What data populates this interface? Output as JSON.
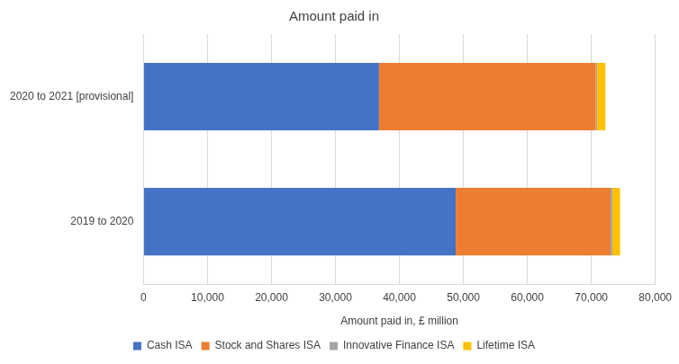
{
  "chart_data": {
    "type": "bar",
    "title": "Amount paid in",
    "orientation": "horizontal",
    "stacked": true,
    "grid": true,
    "legend": "bottom",
    "x_label": "Amount paid in, £ million",
    "categories": [
      "2020 to 2021 [provisional]",
      "2019 to 2020"
    ],
    "series": [
      {
        "name": "Cash ISA",
        "color": "#4472c4",
        "values": [
          36800,
          48800
        ]
      },
      {
        "name": "Stock and Shares ISA",
        "color": "#ed7d31",
        "values": [
          33900,
          24200
        ]
      },
      {
        "name": "Innovative Finance ISA",
        "color": "#a5a5a5",
        "values": [
          200,
          300
        ]
      },
      {
        "name": "Lifetime ISA",
        "color": "#ffc000",
        "values": [
          1300,
          1200
        ]
      }
    ],
    "xlim": [
      0,
      80000
    ],
    "xticks": [
      0,
      {
        "value": 10000,
        "label": "10,000"
      },
      {
        "value": 20000,
        "label": "20,000"
      },
      {
        "value": 30000,
        "label": "30,000"
      },
      {
        "value": 40000,
        "label": "40,000"
      },
      {
        "value": 50000,
        "label": "50,000"
      },
      {
        "value": 60000,
        "label": "60,000"
      },
      {
        "value": 70000,
        "label": "70,000"
      },
      {
        "value": 80000,
        "label": "80,000"
      }
    ]
  }
}
